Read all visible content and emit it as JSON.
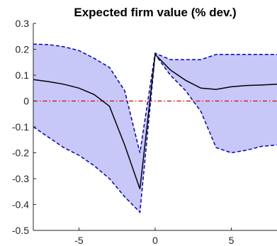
{
  "chart_data": {
    "type": "line",
    "title": "Expected firm value (% dev.)",
    "xlabel": "",
    "ylabel": "",
    "xlim": [
      -8,
      8
    ],
    "ylim": [
      -0.5,
      0.3
    ],
    "xticks": [
      -5,
      0,
      5
    ],
    "yticks": [
      0.3,
      0.2,
      0.1,
      0,
      -0.1,
      -0.2,
      -0.3,
      -0.4,
      -0.5
    ],
    "xtick_labels": [
      "-5",
      "0",
      "5"
    ],
    "ytick_labels": [
      "0.3",
      "0.2",
      "0.1",
      "0",
      "-0.1",
      "-0.2",
      "-0.3",
      "-0.4",
      "-0.5"
    ],
    "grid": false,
    "legend": "none",
    "colors": {
      "band_fill": "#c8c8f8",
      "band_edge": "#0000cc",
      "mean_line": "#000000",
      "zero_line": "#dd0000"
    },
    "x": [
      -8,
      -7,
      -6,
      -5,
      -4,
      -3,
      -2,
      -1,
      0,
      1,
      2,
      3,
      4,
      5,
      6,
      7,
      8
    ],
    "series": [
      {
        "role": "upper",
        "values": [
          0.22,
          0.218,
          0.21,
          0.195,
          0.165,
          0.13,
          0.04,
          -0.2,
          0.185,
          0.16,
          0.16,
          0.16,
          0.18,
          0.18,
          0.18,
          0.18,
          0.18
        ]
      },
      {
        "role": "mean",
        "values": [
          0.083,
          0.075,
          0.065,
          0.05,
          0.025,
          -0.02,
          -0.17,
          -0.34,
          0.18,
          0.12,
          0.08,
          0.05,
          0.045,
          0.055,
          0.06,
          0.062,
          0.065
        ]
      },
      {
        "role": "lower",
        "values": [
          -0.1,
          -0.14,
          -0.18,
          -0.21,
          -0.25,
          -0.3,
          -0.37,
          -0.43,
          0.18,
          0.1,
          0.04,
          -0.04,
          -0.18,
          -0.2,
          -0.19,
          -0.175,
          -0.17
        ]
      }
    ],
    "reference_line": {
      "y": 0
    }
  }
}
